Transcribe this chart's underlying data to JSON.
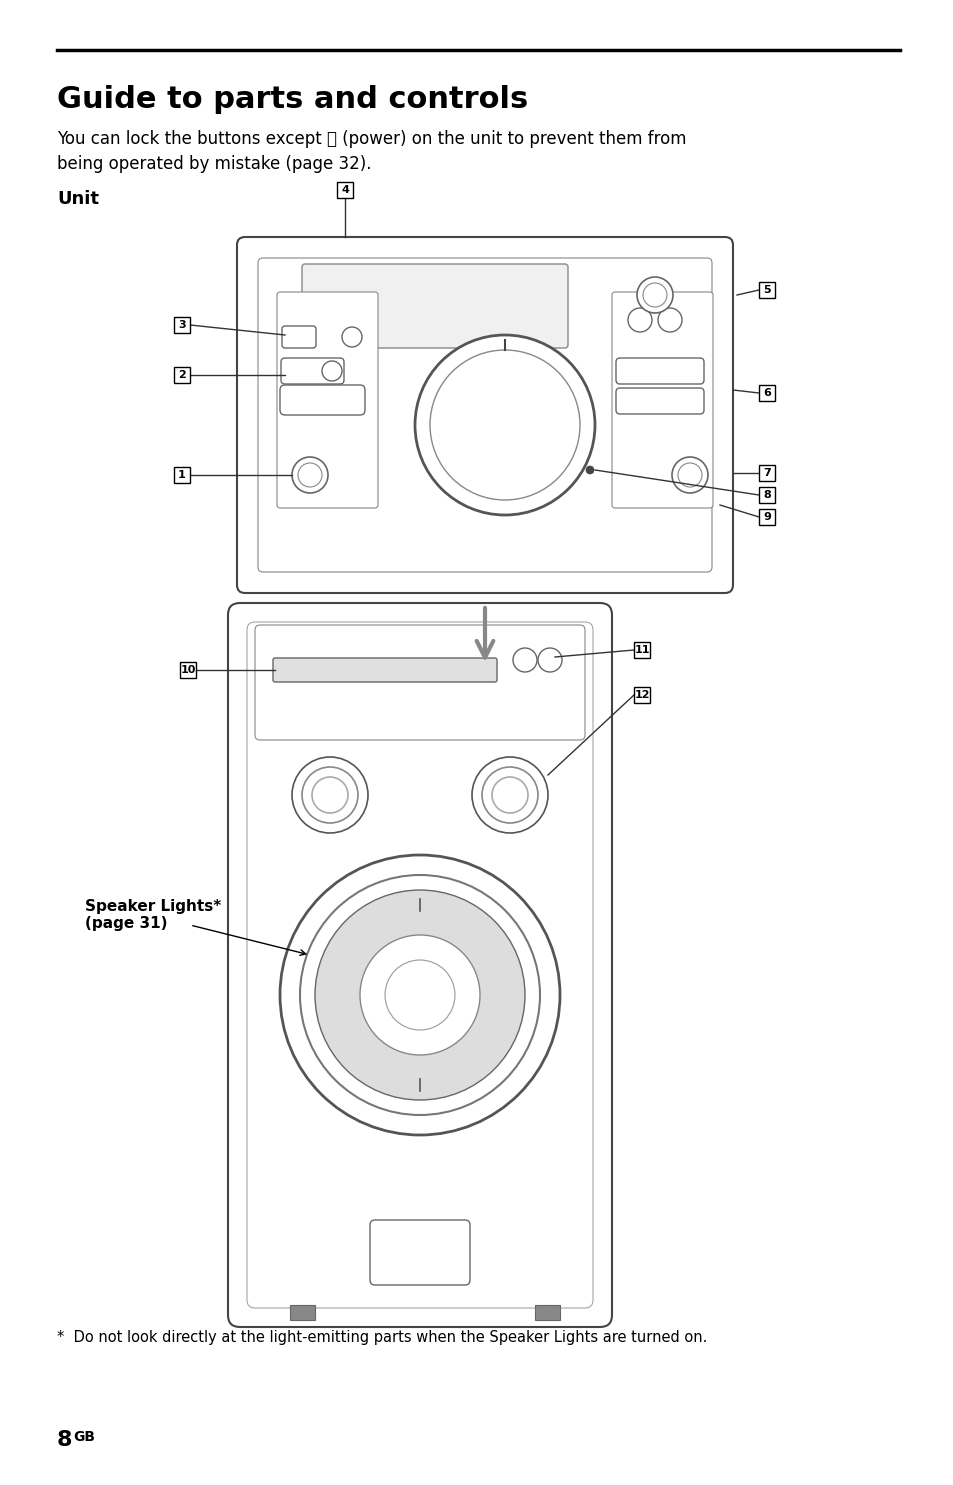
{
  "title": "Guide to parts and controls",
  "body_text_line1": "You can lock the buttons except ⏻ (power) on the unit to prevent them from",
  "body_text_line2": "being operated by mistake (page 32).",
  "unit_label": "Unit",
  "footnote": "*  Do not look directly at the light-emitting parts when the Speaker Lights are turned on.",
  "page_number": "8",
  "page_suffix": "GB",
  "speaker_lights_label": "Speaker Lights*\n(page 31)",
  "background_color": "#ffffff",
  "line_color": "#000000",
  "device_outline_color": "#555555",
  "label_box_color": "#000000",
  "label_text_color": "#ffffff",
  "arrow_color": "#888888"
}
